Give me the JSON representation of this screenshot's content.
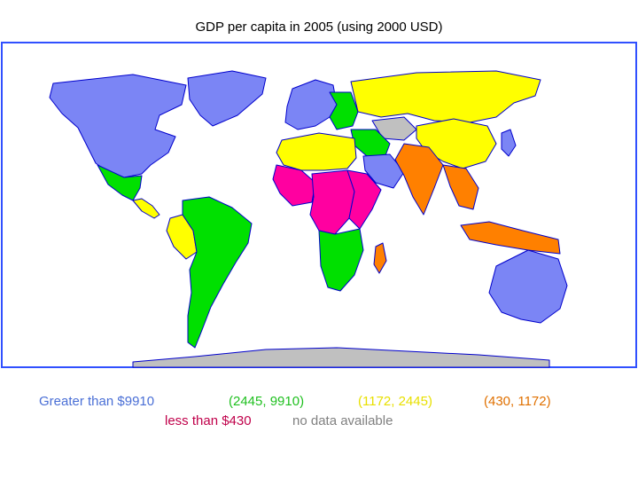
{
  "title": "GDP per capita in 2005 (using 2000 USD)",
  "colors": {
    "high": "#7b85f5",
    "upper_mid": "#00e000",
    "mid": "#ffff00",
    "lower_mid": "#ff8000",
    "low": "#ff00a0",
    "no_data": "#c0c0c0",
    "ocean": "#ffffff",
    "border": "#0000cc"
  },
  "legend": {
    "high": {
      "label": "Greater than $9910",
      "color": "#4a6fd6"
    },
    "upper_mid": {
      "label": "(2445, 9910)",
      "color": "#20c020"
    },
    "mid": {
      "label": "(1172, 2445)",
      "color": "#e8e000"
    },
    "lower_mid": {
      "label": "(430, 1172)",
      "color": "#e07000"
    },
    "low": {
      "label": "less than $430",
      "color": "#c0004a"
    },
    "no_data": {
      "label": "no data available",
      "color": "#808080"
    }
  },
  "regions": [
    {
      "name": "north-america",
      "category": "high"
    },
    {
      "name": "greenland",
      "category": "high"
    },
    {
      "name": "mexico",
      "category": "upper_mid"
    },
    {
      "name": "central-america",
      "category": "mid"
    },
    {
      "name": "south-america",
      "category": "upper_mid"
    },
    {
      "name": "peru-bolivia",
      "category": "mid"
    },
    {
      "name": "western-europe",
      "category": "high"
    },
    {
      "name": "eastern-europe",
      "category": "upper_mid"
    },
    {
      "name": "russia",
      "category": "mid"
    },
    {
      "name": "north-africa",
      "category": "mid"
    },
    {
      "name": "west-africa",
      "category": "low"
    },
    {
      "name": "central-africa",
      "category": "low"
    },
    {
      "name": "southern-africa",
      "category": "upper_mid"
    },
    {
      "name": "east-africa",
      "category": "low"
    },
    {
      "name": "middle-east",
      "category": "upper_mid"
    },
    {
      "name": "arabia",
      "category": "high"
    },
    {
      "name": "india",
      "category": "lower_mid"
    },
    {
      "name": "china",
      "category": "mid"
    },
    {
      "name": "southeast-asia",
      "category": "lower_mid"
    },
    {
      "name": "japan-korea",
      "category": "high"
    },
    {
      "name": "indonesia",
      "category": "lower_mid"
    },
    {
      "name": "australia",
      "category": "high"
    },
    {
      "name": "antarctica",
      "category": "no_data"
    },
    {
      "name": "central-asia",
      "category": "no_data"
    },
    {
      "name": "madagascar",
      "category": "lower_mid"
    }
  ]
}
